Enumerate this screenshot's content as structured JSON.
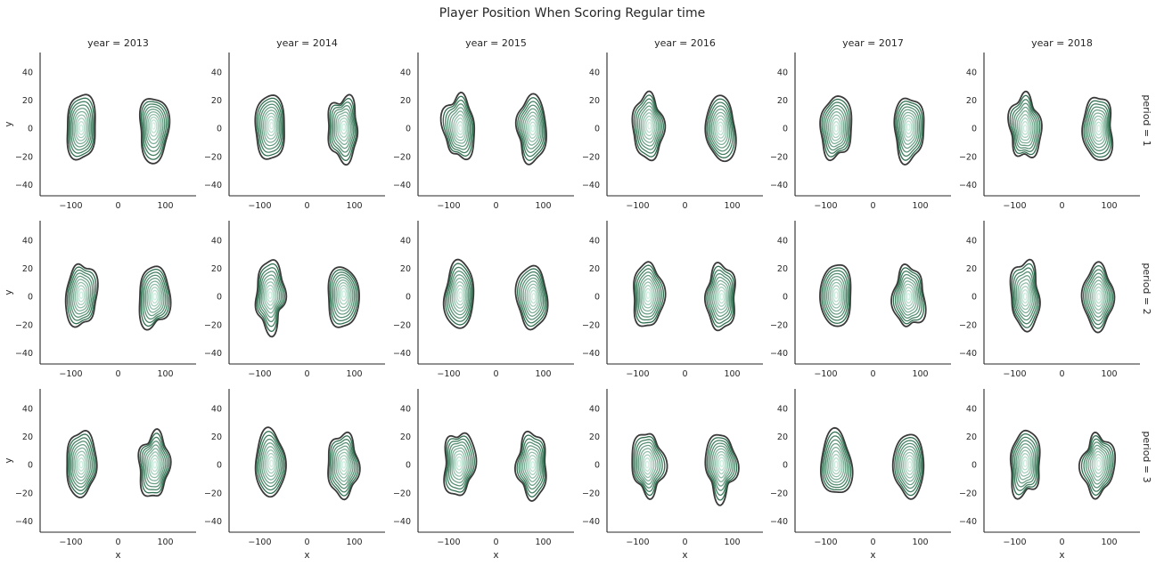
{
  "chart_data": {
    "type": "kde_contour_grid",
    "title": "Player Position When Scoring Regular time",
    "col_var": "year",
    "row_var": "period",
    "col_values": [
      "2013",
      "2014",
      "2015",
      "2016",
      "2017",
      "2018"
    ],
    "row_values": [
      "1",
      "2",
      "3"
    ],
    "col_titles": [
      "year = 2013",
      "year = 2014",
      "year = 2015",
      "year = 2016",
      "year = 2017",
      "year = 2018"
    ],
    "row_titles": [
      "period = 1",
      "period = 2",
      "period = 3"
    ],
    "xlabel": "x",
    "ylabel": "y",
    "xlim": [
      -165,
      165
    ],
    "ylim": [
      -48,
      54
    ],
    "xticks": [
      -100,
      0,
      100
    ],
    "xtick_labels": [
      "−100",
      "0",
      "100"
    ],
    "yticks": [
      -40,
      -20,
      0,
      20,
      40
    ],
    "ytick_labels": [
      "−40",
      "−20",
      "0",
      "20",
      "40"
    ],
    "grid": false,
    "levels": 10,
    "colors": {
      "outer": "#3a3a3a",
      "inner_start": "#2f6e4f",
      "inner_end": "#cfeee0",
      "axis": "#262626"
    },
    "clusters": [
      {
        "name": "left",
        "center_x": -78,
        "center_y": 0,
        "half_width_x": 32,
        "height_top": 24,
        "height_bottom": 22
      },
      {
        "name": "right",
        "center_x": 76,
        "center_y": 0,
        "half_width_x": 32,
        "height_top": 22,
        "height_bottom": 23
      }
    ],
    "panel_peaks": [
      [
        {
          "left": [
            -78,
            0
          ],
          "right": [
            75,
            2
          ]
        },
        {
          "left": [
            -75,
            2
          ],
          "right": [
            78,
            1
          ]
        },
        {
          "left": [
            -75,
            0
          ],
          "right": [
            78,
            0
          ]
        },
        {
          "left": [
            -75,
            2
          ],
          "right": [
            75,
            0
          ]
        },
        {
          "left": [
            -78,
            0
          ],
          "right": [
            75,
            1
          ]
        },
        {
          "left": [
            -78,
            0
          ],
          "right": [
            78,
            0
          ]
        }
      ],
      [
        {
          "left": [
            -78,
            1
          ],
          "right": [
            78,
            0
          ]
        },
        {
          "left": [
            -78,
            1
          ],
          "right": [
            78,
            2
          ]
        },
        {
          "left": [
            -75,
            1
          ],
          "right": [
            80,
            0
          ]
        },
        {
          "left": [
            -78,
            1
          ],
          "right": [
            78,
            0
          ]
        },
        {
          "left": [
            -78,
            1
          ],
          "right": [
            75,
            0
          ]
        },
        {
          "left": [
            -78,
            0
          ],
          "right": [
            78,
            0
          ]
        }
      ],
      [
        {
          "left": [
            -78,
            0
          ],
          "right": [
            78,
            0
          ]
        },
        {
          "left": [
            -75,
            1
          ],
          "right": [
            78,
            0
          ]
        },
        {
          "left": [
            -78,
            1
          ],
          "right": [
            78,
            0
          ]
        },
        {
          "left": [
            -80,
            0
          ],
          "right": [
            78,
            1
          ]
        },
        {
          "left": [
            -78,
            0
          ],
          "right": [
            78,
            0
          ]
        },
        {
          "left": [
            -78,
            1
          ],
          "right": [
            78,
            1
          ]
        }
      ]
    ]
  }
}
